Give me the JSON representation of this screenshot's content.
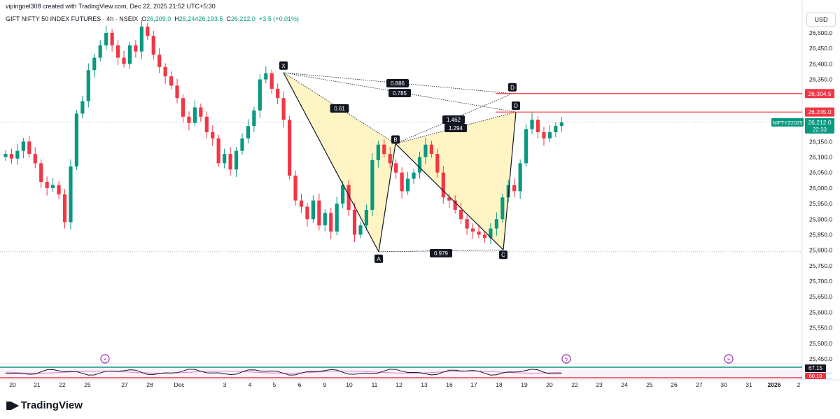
{
  "header": {
    "credit": "vipingoel308 created with TradingView.com, Dec 22, 2025 21:52 UTC+5:30",
    "symbol": "GIFT NIFTY 50 INDEX FUTURES · 4h · NSEIX",
    "o_label": "O",
    "o_value": "26,209.0",
    "h_label": "H",
    "h_value": "26,244",
    "c_label": "C",
    "c_value": "26,212.0",
    "extra": "26,193.5",
    "change": "+3.5 (+0.01%)"
  },
  "currency": "USD",
  "brand": {
    "name": "TradingView",
    "logo": "tradingview-logo-icon"
  },
  "colors": {
    "up": "#089981",
    "down": "#f23645",
    "pattern_fill": "#fff2b0",
    "level_line": "#f23645",
    "last_price": "#089981"
  },
  "chart_data": {
    "type": "candlestick",
    "ylim": [
      25400,
      26550
    ],
    "y_ticks": [
      "26,500.0",
      "26,450.0",
      "26,400.0",
      "26,350.0",
      "26,300.0",
      "26,250.0",
      "26,200.0",
      "26,150.0",
      "26,100.0",
      "26,050.0",
      "26,000.0",
      "25,950.0",
      "25,900.0",
      "25,850.0",
      "25,800.0",
      "25,750.0",
      "25,700.0",
      "25,650.0",
      "25,600.0",
      "25,550.0",
      "25,500.0",
      "25,450.0"
    ],
    "x_ticks": [
      "20",
      "21",
      "22",
      "25",
      "27",
      "28",
      "Dec",
      "3",
      "4",
      "5",
      "6",
      "9",
      "10",
      "11",
      "12",
      "13",
      "16",
      "17",
      "18",
      "19",
      "20",
      "22",
      "23",
      "24",
      "25",
      "26",
      "27",
      "30",
      "31",
      "2026",
      "2",
      "3"
    ],
    "closes": [
      26110,
      26095,
      26120,
      26150,
      26110,
      26080,
      26020,
      26000,
      26010,
      25980,
      25890,
      26070,
      26240,
      26280,
      26380,
      26420,
      26460,
      26500,
      26460,
      26420,
      26400,
      26460,
      26440,
      26520,
      26490,
      26430,
      26390,
      26360,
      26330,
      26290,
      26230,
      26210,
      26260,
      26230,
      26180,
      26160,
      26080,
      26110,
      26060,
      26120,
      26160,
      26200,
      26250,
      26350,
      26370,
      26320,
      26290,
      26220,
      26040,
      25960,
      25940,
      25900,
      25960,
      25880,
      25920,
      25860,
      25950,
      26010,
      25930,
      25850,
      25880,
      25930,
      26090,
      26140,
      26110,
      26080,
      26050,
      25990,
      26030,
      26050,
      26100,
      26140,
      26110,
      26050,
      25970,
      25960,
      25930,
      25900,
      25870,
      25860,
      25850,
      25840,
      25870,
      25900,
      25970,
      26010,
      25990,
      26080,
      26190,
      26220,
      26180,
      26160,
      26180,
      26200,
      26212
    ],
    "patterns": [
      {
        "points": {
          "X": 26372,
          "A": 25795,
          "B": 26143,
          "C": 25801
        },
        "D_values": [
          26304.5,
          26245.0
        ]
      }
    ],
    "pattern_labels": [
      "X",
      "A",
      "B",
      "C",
      "D",
      "D"
    ],
    "ratios": [
      "0.886",
      "0.785",
      "0.61",
      "1.462",
      "1.294",
      "0.979"
    ],
    "levels": [
      {
        "price": 26304.5,
        "label": "26,304.5"
      },
      {
        "price": 26245.0,
        "label": "26,245.0"
      }
    ],
    "last_price": {
      "price": 26212.0,
      "label": "26,212.0",
      "name": "NIFTYZ2025",
      "timer": "22:33"
    },
    "indicator": {
      "values": [
        "67.15",
        "60.10"
      ]
    },
    "grid": false
  }
}
